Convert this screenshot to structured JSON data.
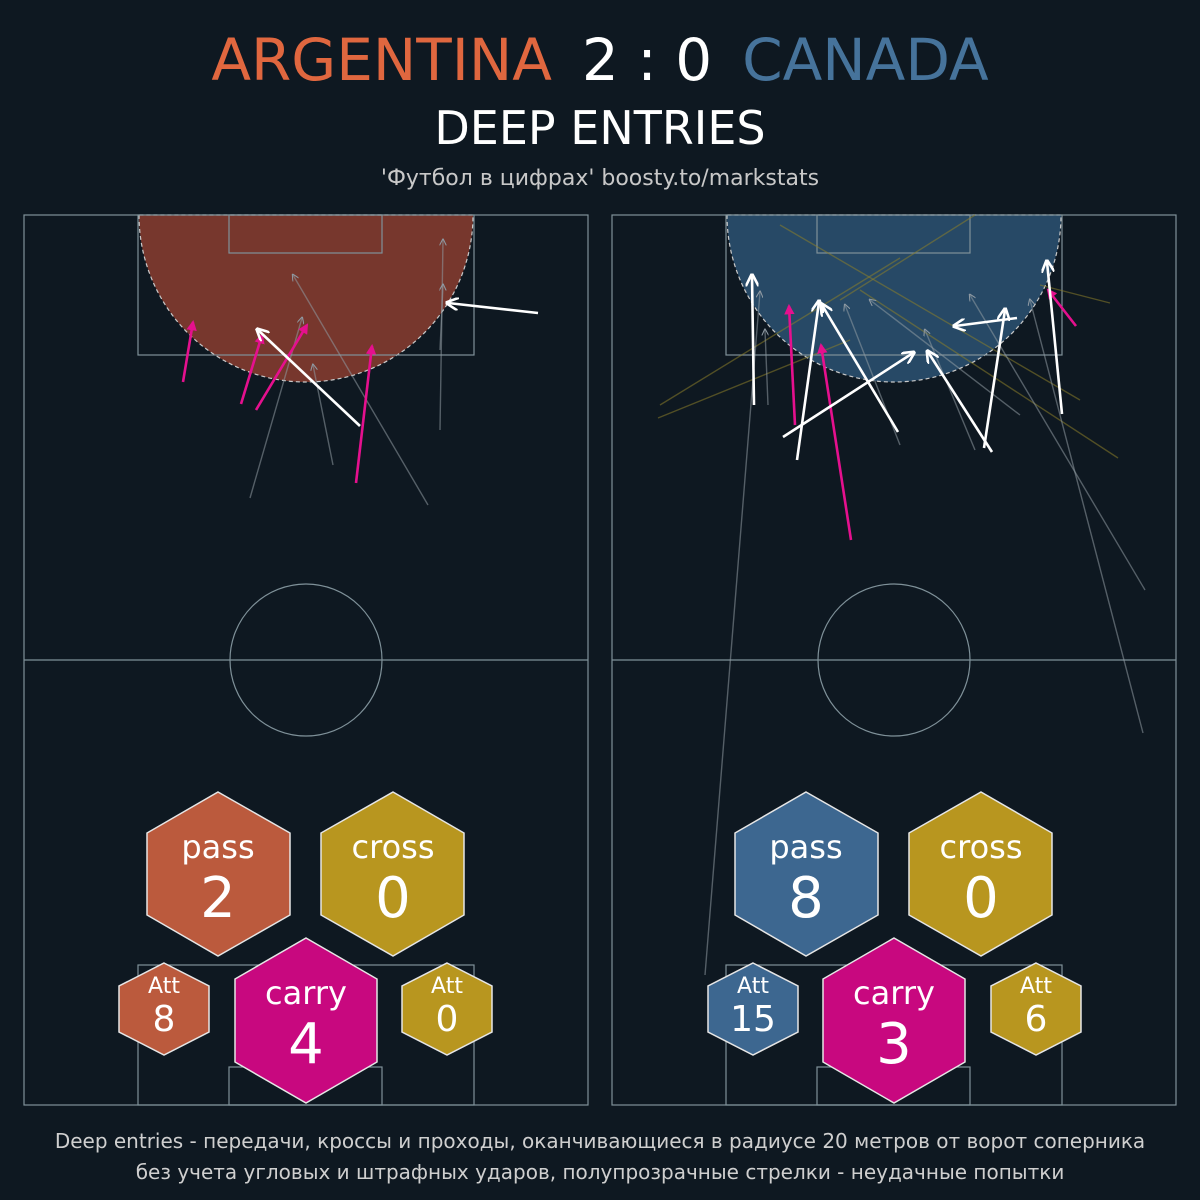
{
  "header": {
    "home_team": "ARGENTINA",
    "score": "2 : 0",
    "away_team": "CANADA",
    "title": "DEEP ENTRIES",
    "credit": "'Футбол в цифрах' boosty.to/markstats"
  },
  "colors": {
    "background": "#0e1821",
    "home": "#e0673f",
    "away": "#46739b",
    "cross": "#b8961f",
    "carry": "#c8087f",
    "success_pass": "#ffffff",
    "failed": "#8f9aa3",
    "pitch_line": "#7f9199"
  },
  "teams": [
    {
      "name": "ARGENTINA",
      "stats": {
        "pass_label": "pass",
        "pass": "2",
        "cross_label": "cross",
        "cross": "0",
        "carry_label": "carry",
        "carry": "4",
        "pass_att_label": "Att",
        "pass_att": "8",
        "cross_att_label": "Att",
        "cross_att": "0"
      }
    },
    {
      "name": "CANADA",
      "stats": {
        "pass_label": "pass",
        "pass": "8",
        "cross_label": "cross",
        "cross": "0",
        "carry_label": "carry",
        "carry": "3",
        "pass_att_label": "Att",
        "pass_att": "15",
        "cross_att_label": "Att",
        "cross_att": "6"
      }
    }
  ],
  "footer": {
    "line1": "Deep entries - передачи, кроссы и проходы, оканчивающиеся в радиусе 20 метров от ворот соперника",
    "line2": "без учета угловых и штрафных ударов, полупрозрачные стрелки - неудачные попытки"
  }
}
